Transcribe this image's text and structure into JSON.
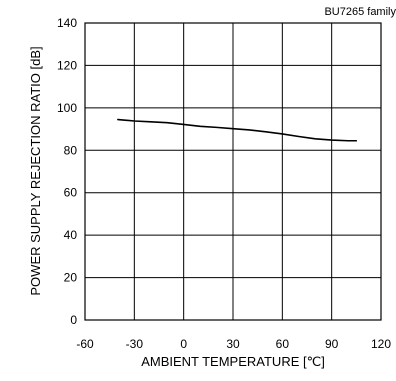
{
  "chart_data": {
    "type": "line",
    "annotation": "BU7265 family",
    "xlabel": "AMBIENT TEMPERATURE [℃]",
    "ylabel": "POWER SUPPLY REJECTION RATIO [dB]",
    "xlim": [
      -60,
      120
    ],
    "ylim": [
      0,
      140
    ],
    "xticks": [
      -60,
      -30,
      0,
      30,
      60,
      90,
      120
    ],
    "yticks": [
      0,
      20,
      40,
      60,
      80,
      100,
      120,
      140
    ],
    "grid": true,
    "series": [
      {
        "x": [
          -40,
          -30,
          -20,
          -10,
          0,
          10,
          20,
          30,
          40,
          50,
          60,
          70,
          80,
          90,
          100,
          105
        ],
        "y": [
          94.5,
          93.8,
          93.4,
          93.0,
          92.2,
          91.3,
          90.8,
          90.2,
          89.6,
          88.7,
          87.7,
          86.5,
          85.4,
          84.8,
          84.5,
          84.5
        ]
      }
    ],
    "colors": {
      "line": "#000000",
      "grid": "#000000",
      "background": "#ffffff"
    }
  }
}
